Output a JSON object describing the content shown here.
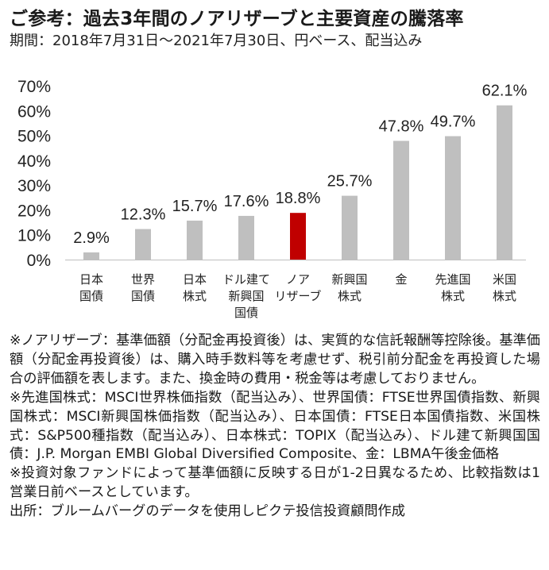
{
  "title": "ご参考：過去3年間のノアリザーブと主要資産の騰落率",
  "subtitle": "期間：2018年7月31日～2021年7月30日、円ベース、配当込み",
  "chart_data": {
    "type": "bar",
    "categories": [
      [
        "日本",
        "国債"
      ],
      [
        "世界",
        "国債"
      ],
      [
        "日本",
        "株式"
      ],
      [
        "ドル建て",
        "新興国",
        "国債"
      ],
      [
        "ノア",
        "リザーブ"
      ],
      [
        "新興国",
        "株式"
      ],
      [
        "金"
      ],
      [
        "先進国",
        "株式"
      ],
      [
        "米国",
        "株式"
      ]
    ],
    "values": [
      2.9,
      12.3,
      15.7,
      17.6,
      18.8,
      25.7,
      47.8,
      49.7,
      62.1
    ],
    "value_labels": [
      "2.9%",
      "12.3%",
      "15.7%",
      "17.6%",
      "18.8%",
      "25.7%",
      "47.8%",
      "49.7%",
      "62.1%"
    ],
    "highlight_index": 4,
    "colors": {
      "bar": "#bfbfbf",
      "highlight": "#c00000"
    },
    "ylim": [
      0,
      70
    ],
    "yticks": [
      0,
      10,
      20,
      30,
      40,
      50,
      60,
      70
    ],
    "ytick_labels": [
      "0%",
      "10%",
      "20%",
      "30%",
      "40%",
      "50%",
      "60%",
      "70%"
    ],
    "grid": false,
    "legend": "none"
  },
  "notes": [
    "※ノアリザーブ：基準価額（分配金再投資後）は、実質的な信託報酬等控除後。基準価額（分配金再投資後）は、購入時手数料等を考慮せず、税引前分配金を再投資した場合の評価額を表します。また、換金時の費用・税金等は考慮しておりません。",
    "※先進国株式：MSCI世界株価指数（配当込み）、世界国債：FTSE世界国債指数、新興国株式：MSCI新興国株価指数（配当込み）、日本国債：FTSE日本国債指数、米国株式：S&P500種指数（配当込み）、日本株式：TOPIX（配当込み）、ドル建て新興国国債：J.P. Morgan EMBI Global Diversified Composite、金：LBMA午後金価格",
    "※投資対象ファンドによって基準価額に反映する日が1-2日異なるため、比較指数は1営業日前ベースとしています。",
    "出所：ブルームバーグのデータを使用しピクテ投信投資顧問作成"
  ]
}
